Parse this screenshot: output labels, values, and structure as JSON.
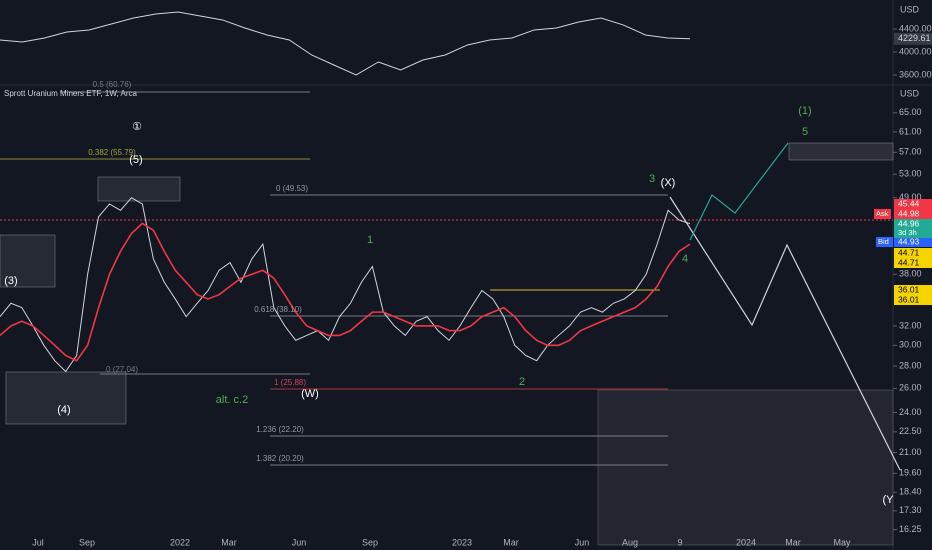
{
  "chart_data": [
    {
      "type": "line",
      "currency": "USD",
      "last_label": "4229.61",
      "color": "#d1d4dc",
      "values": [
        4209,
        4174,
        4243,
        4348,
        4383,
        4487,
        4591,
        4661,
        4696,
        4626,
        4557,
        4417,
        4296,
        4209,
        3948,
        3774,
        3600,
        3826,
        3687,
        3861,
        3948,
        4122,
        4209,
        4243,
        4383,
        4417,
        4522,
        4591,
        4470,
        4296,
        4243,
        4229.61
      ],
      "ylim": [
        3426,
        4904
      ],
      "yticks": [
        {
          "value": 4400,
          "label": "4400.00"
        },
        {
          "value": 4000,
          "label": "4000.00"
        },
        {
          "value": 3600,
          "label": "3600.00"
        }
      ]
    },
    {
      "type": "line",
      "title": "Sprott Uranium Miners ETF, 1W, Arca",
      "currency": "USD",
      "log_scale": true,
      "series": [
        {
          "color": "#d1d4dc",
          "values": [
            33,
            34.5,
            34,
            32,
            30,
            28.5,
            27.5,
            29,
            38,
            46,
            48,
            47,
            49,
            48,
            40,
            37,
            35,
            33,
            34.5,
            36,
            38.5,
            39.5,
            37,
            40,
            42,
            34,
            32,
            30.5,
            31,
            31.5,
            30.5,
            33,
            34.5,
            37,
            39,
            33.5,
            32,
            31,
            32.5,
            33,
            31.5,
            30.5,
            32,
            34,
            36,
            35,
            33,
            30,
            29,
            28.5,
            30,
            31,
            32,
            33.5,
            34,
            33.5,
            34.5,
            35,
            36,
            38,
            42,
            47,
            45.5,
            44.96
          ]
        },
        {
          "color": "#f23645",
          "values": [
            31,
            32,
            32.5,
            32,
            31,
            30,
            29,
            28.5,
            30,
            34,
            38,
            41,
            43.5,
            45,
            44,
            41,
            38.5,
            37,
            35.5,
            35,
            35.5,
            36.5,
            37.5,
            38,
            38.5,
            37.5,
            35.5,
            33.5,
            32,
            31.5,
            31,
            31,
            31.5,
            32.5,
            33.5,
            33.5,
            33,
            32.5,
            32,
            32,
            32,
            31.5,
            31.5,
            32,
            33,
            33.5,
            34,
            33,
            31.5,
            30.5,
            30,
            30,
            30.5,
            31.5,
            32,
            32.5,
            33,
            33.5,
            34,
            35,
            36.5,
            39,
            41,
            42
          ]
        }
      ],
      "ylim": [
        15.7,
        71.3
      ],
      "yticks": [
        {
          "value": 65,
          "label": "65.00"
        },
        {
          "value": 61,
          "label": "61.00"
        },
        {
          "value": 57,
          "label": "57.00"
        },
        {
          "value": 53,
          "label": "53.00"
        },
        {
          "value": 49,
          "label": "49.00"
        },
        {
          "value": 38,
          "label": "38.00"
        },
        {
          "value": 32,
          "label": "32.00"
        },
        {
          "value": 30,
          "label": "30.00"
        },
        {
          "value": 28,
          "label": "28.00"
        },
        {
          "value": 26,
          "label": "26.00"
        },
        {
          "value": 24,
          "label": "24.00"
        },
        {
          "value": 22.5,
          "label": "22.50"
        },
        {
          "value": 21,
          "label": "21.00"
        },
        {
          "value": 19.6,
          "label": "19.60"
        },
        {
          "value": 18.4,
          "label": "18.40"
        },
        {
          "value": 17.3,
          "label": "17.30"
        },
        {
          "value": 16.25,
          "label": "16.25"
        }
      ],
      "x_axis_labels": [
        "Jul",
        "Sep",
        "2022",
        "Mar",
        "Jun",
        "Sep",
        "2023",
        "Mar",
        "Jun",
        "Aug",
        "9",
        "2024",
        "Mar",
        "May"
      ],
      "levels": [
        "0.5 (60.76)",
        "0.382 (55.79)",
        "0 (49.53)",
        "0.618 (38.10)",
        "0 (27.04)",
        "1 (25.88)",
        "1.236 (22.20)",
        "1.382 (20.20)"
      ],
      "waves": [
        "①",
        "(5)",
        "(3)",
        "(4)",
        "1",
        "(W)",
        "alt. c.2",
        "2",
        "3",
        "(X)",
        "4",
        "(1)",
        "5",
        "(Y"
      ],
      "price_badges": [
        {
          "value": 45.44,
          "color": "#f23645"
        },
        {
          "value": 44.98,
          "color": "#f23645"
        },
        {
          "value": 44.96,
          "color": "#22ab94"
        },
        {
          "value": 44.93,
          "color": "#2962ff"
        },
        {
          "value": 44.71,
          "color": "#f5d400"
        },
        {
          "value": 44.71,
          "color": "#f5d400"
        },
        {
          "value": 36.01,
          "color": "#f5d400"
        },
        {
          "value": 36.01,
          "color": "#f5d400"
        }
      ],
      "badge_tags": [
        "Ask",
        "3d 3h",
        "Bid"
      ]
    }
  ]
}
